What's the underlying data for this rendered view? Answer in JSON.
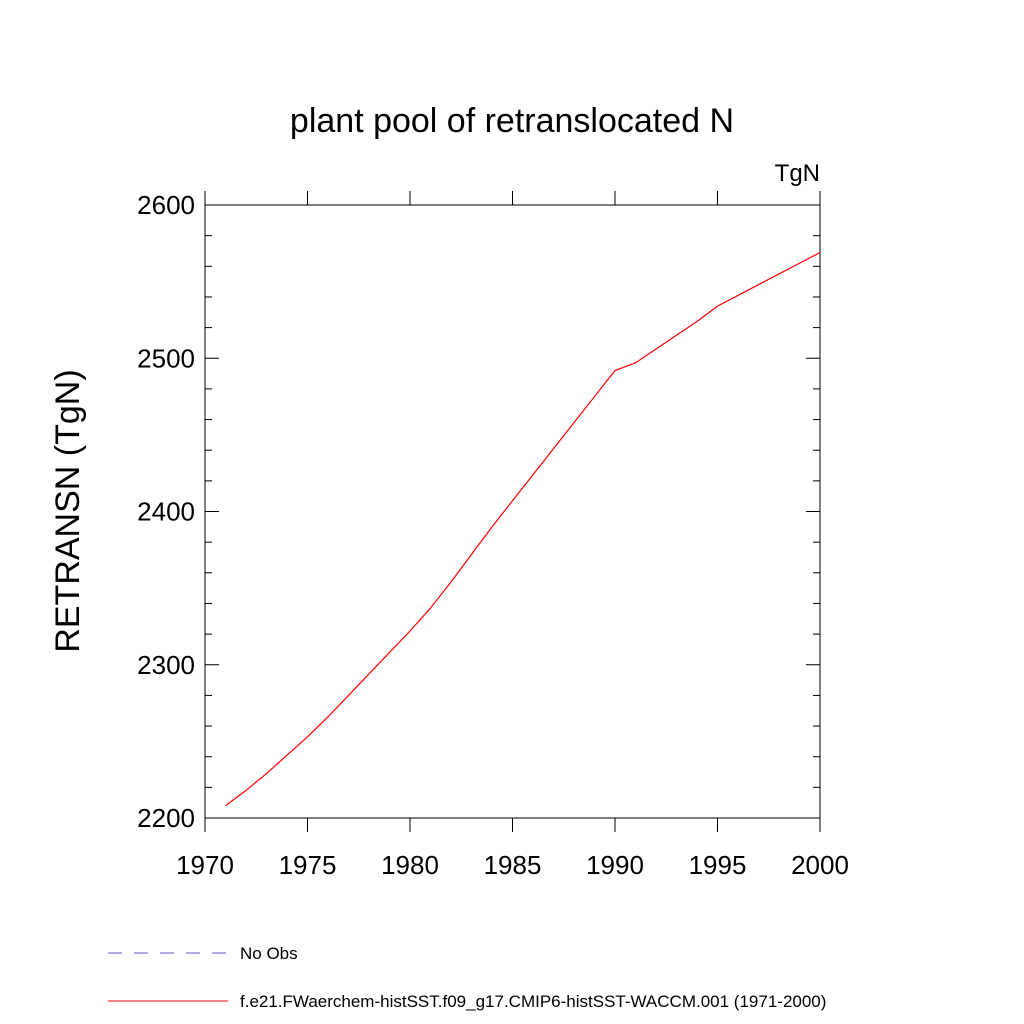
{
  "chart_data": {
    "type": "line",
    "title": "plant pool of retranslocated N",
    "units_label": "TgN",
    "xlabel": "",
    "ylabel": "RETRANSN  (TgN)",
    "xlim": [
      1970,
      2000
    ],
    "ylim": [
      2200,
      2600
    ],
    "x_ticks": [
      1970,
      1975,
      1980,
      1985,
      1990,
      1995,
      2000
    ],
    "y_ticks": [
      2200,
      2300,
      2400,
      2500,
      2600
    ],
    "grid": false,
    "legend_position": "bottom-left, below plot",
    "series": [
      {
        "name": "f.e21.FWaerchem-histSST.f09_g17.CMIP6-histSST-WACCM.001 (1971-2000)",
        "color": "#ff0000",
        "style": "solid",
        "x": [
          1971,
          1972,
          1973,
          1974,
          1975,
          1976,
          1977,
          1978,
          1979,
          1980,
          1981,
          1982,
          1983,
          1984,
          1985,
          1986,
          1987,
          1988,
          1989,
          1990,
          1991,
          1992,
          1993,
          1994,
          1995,
          1996,
          1997,
          1998,
          1999,
          2000
        ],
        "y": [
          2208,
          2218,
          2229,
          2241,
          2253,
          2266,
          2280,
          2294,
          2308,
          2322,
          2337,
          2354,
          2372,
          2390,
          2407,
          2424,
          2441,
          2458,
          2475,
          2492,
          2497,
          2506,
          2515,
          2524,
          2534,
          2541,
          2548,
          2555,
          2562,
          2569
        ]
      }
    ],
    "legend": [
      {
        "label": "No Obs",
        "color": "#6a5acd",
        "style": "dashed"
      },
      {
        "label": "f.e21.FWaerchem-histSST.f09_g17.CMIP6-histSST-WACCM.001 (1971-2000)",
        "color": "#ff0000",
        "style": "solid"
      }
    ]
  }
}
